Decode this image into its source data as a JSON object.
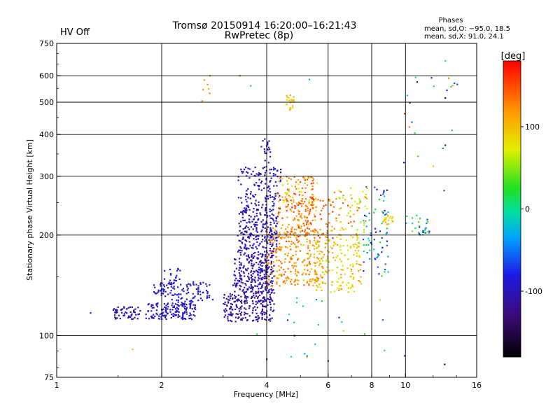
{
  "header": {
    "title": "Tromsø 20150914 16:20:00–16:21:43",
    "subtitle": "RwPretec (8p)",
    "status": "HV Off",
    "status_color": "#ff0000"
  },
  "stats": {
    "heading": "Phases",
    "line_o": "mean, sd,O: −95.0, 18.5",
    "line_x": "mean, sd,X: 91.0, 24.1"
  },
  "colorbar": {
    "label": "[deg]",
    "min": -180,
    "max": 180,
    "ticks": [
      100,
      0,
      -100
    ],
    "tick_labels": [
      "100",
      "0",
      "-100"
    ]
  },
  "chart_data": {
    "type": "scatter",
    "xlabel": "Frequency [MHz]",
    "ylabel": "Stationary phase Virtual Height [km]",
    "x_scale": "log",
    "y_scale": "log",
    "xlim": [
      1,
      16
    ],
    "ylim": [
      75,
      750
    ],
    "x_ticks": [
      1,
      2,
      4,
      6,
      8,
      10,
      16
    ],
    "x_tick_labels": [
      "1",
      "2",
      "4",
      "6",
      "8",
      "10",
      "16"
    ],
    "y_ticks": [
      75,
      100,
      200,
      300,
      400,
      500,
      600,
      750
    ],
    "y_tick_labels": [
      "75",
      "100",
      "200",
      "300",
      "400",
      "500",
      "600",
      "750"
    ],
    "grid": true,
    "color_encoding": "phase [deg]",
    "clusters": [
      {
        "x": [
          1.45,
          1.75
        ],
        "y": [
          112,
          122
        ],
        "phase": [
          -115,
          -95
        ],
        "n": 60
      },
      {
        "x": [
          1.8,
          2.5
        ],
        "y": [
          112,
          125
        ],
        "phase": [
          -110,
          -80
        ],
        "n": 150
      },
      {
        "x": [
          1.9,
          2.8
        ],
        "y": [
          125,
          145
        ],
        "phase": [
          -105,
          -75
        ],
        "n": 110
      },
      {
        "x": [
          2.0,
          2.3
        ],
        "y": [
          140,
          162
        ],
        "phase": [
          -100,
          -80
        ],
        "n": 25
      },
      {
        "x": [
          3.0,
          4.2
        ],
        "y": [
          110,
          135
        ],
        "phase": [
          -125,
          -100
        ],
        "n": 220
      },
      {
        "x": [
          3.2,
          4.2
        ],
        "y": [
          135,
          175
        ],
        "phase": [
          -120,
          -90
        ],
        "n": 260
      },
      {
        "x": [
          3.3,
          4.3
        ],
        "y": [
          175,
          240
        ],
        "phase": [
          -115,
          -85
        ],
        "n": 240
      },
      {
        "x": [
          3.3,
          4.4
        ],
        "y": [
          240,
          320
        ],
        "phase": [
          -110,
          -85
        ],
        "n": 130
      },
      {
        "x": [
          3.8,
          4.1
        ],
        "y": [
          300,
          390
        ],
        "phase": [
          -100,
          -85
        ],
        "n": 25
      },
      {
        "x": [
          4.0,
          5.8
        ],
        "y": [
          140,
          210
        ],
        "phase": [
          95,
          145
        ],
        "n": 260
      },
      {
        "x": [
          4.3,
          5.6
        ],
        "y": [
          200,
          300
        ],
        "phase": [
          70,
          160
        ],
        "n": 170
      },
      {
        "x": [
          4.5,
          6.2
        ],
        "y": [
          190,
          260
        ],
        "phase": [
          120,
          170
        ],
        "n": 80
      },
      {
        "x": [
          5.5,
          7.5
        ],
        "y": [
          135,
          200
        ],
        "phase": [
          60,
          125
        ],
        "n": 160
      },
      {
        "x": [
          6.0,
          7.8
        ],
        "y": [
          200,
          280
        ],
        "phase": [
          40,
          150
        ],
        "n": 70
      },
      {
        "x": [
          7.5,
          9.0
        ],
        "y": [
          150,
          280
        ],
        "phase": [
          -95,
          30
        ],
        "n": 70
      },
      {
        "x": [
          8.5,
          9.2
        ],
        "y": [
          215,
          230
        ],
        "phase": [
          80,
          110
        ],
        "n": 20
      },
      {
        "x": [
          10.0,
          11.7
        ],
        "y": [
          200,
          230
        ],
        "phase": [
          -95,
          60
        ],
        "n": 30
      },
      {
        "x": [
          2.6,
          2.75
        ],
        "y": [
          500,
          600
        ],
        "phase": [
          100,
          150
        ],
        "n": 6
      },
      {
        "x": [
          4.55,
          4.8
        ],
        "y": [
          470,
          530
        ],
        "phase": [
          85,
          115
        ],
        "n": 22
      },
      {
        "x": [
          10.0,
          14.5
        ],
        "y": [
          300,
          600
        ],
        "phase": [
          -100,
          140
        ],
        "n": 16
      },
      {
        "x": [
          4.0,
          9.0
        ],
        "y": [
          85,
          130
        ],
        "phase": [
          -100,
          100
        ],
        "n": 22
      }
    ],
    "points": [
      {
        "x": 1.25,
        "y": 117,
        "phase": -100
      },
      {
        "x": 1.65,
        "y": 91,
        "phase": 100
      },
      {
        "x": 2.75,
        "y": 600,
        "phase": 140
      },
      {
        "x": 3.35,
        "y": 600,
        "phase": 150
      },
      {
        "x": 3.6,
        "y": 560,
        "phase": -10
      },
      {
        "x": 5.3,
        "y": 585,
        "phase": -20
      },
      {
        "x": 10.8,
        "y": 575,
        "phase": -130
      },
      {
        "x": 13.0,
        "y": 665,
        "phase": -10
      },
      {
        "x": 13.3,
        "y": 590,
        "phase": 120
      },
      {
        "x": 13.8,
        "y": 570,
        "phase": -60
      },
      {
        "x": 13.0,
        "y": 515,
        "phase": -140
      },
      {
        "x": 13.0,
        "y": 372,
        "phase": -110
      },
      {
        "x": 12.9,
        "y": 272,
        "phase": -60
      },
      {
        "x": 9.95,
        "y": 462,
        "phase": 180
      },
      {
        "x": 9.9,
        "y": 330,
        "phase": -120
      },
      {
        "x": 4.0,
        "y": 85,
        "phase": -110
      },
      {
        "x": 6.0,
        "y": 84,
        "phase": -110
      },
      {
        "x": 9.95,
        "y": 87,
        "phase": -100
      },
      {
        "x": 12.95,
        "y": 82,
        "phase": -150
      },
      {
        "x": 3.75,
        "y": 101,
        "phase": 20
      },
      {
        "x": 4.8,
        "y": 100,
        "phase": -110
      }
    ]
  }
}
